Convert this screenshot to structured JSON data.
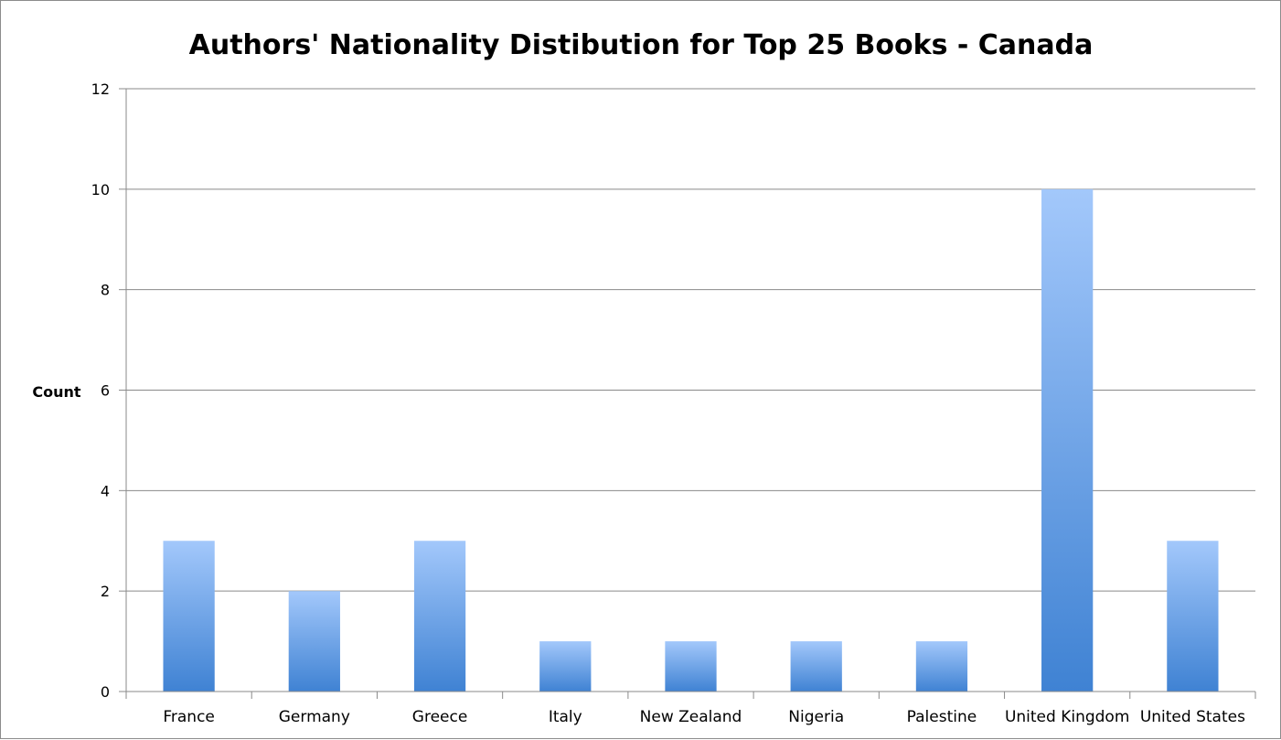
{
  "chart_data": {
    "type": "bar",
    "title": "Authors' Nationality Distibution for Top 25 Books - Canada",
    "xlabel": "",
    "ylabel": "Count",
    "categories": [
      "France",
      "Germany",
      "Greece",
      "Italy",
      "New Zealand",
      "Nigeria",
      "Palestine",
      "United Kingdom",
      "United States"
    ],
    "values": [
      3,
      2,
      3,
      1,
      1,
      1,
      1,
      10,
      3
    ],
    "ylim": [
      0,
      12
    ],
    "yticks": [
      0,
      2,
      4,
      6,
      8,
      10,
      12
    ],
    "grid": true,
    "legend": "none",
    "colors": {
      "bar_top": "#a3c8fb",
      "bar_bottom": "#3f82d3",
      "grid": "#8a8a8a"
    }
  }
}
